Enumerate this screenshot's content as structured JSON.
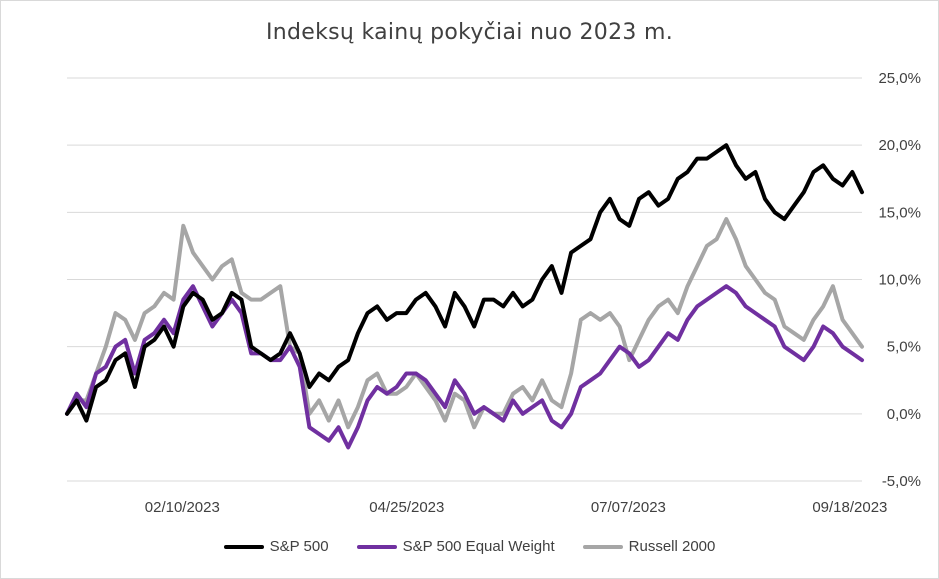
{
  "chart_data": {
    "type": "line",
    "title": "Indeksų kainų pokyčiai nuo 2023 m.",
    "xlabel": "",
    "ylabel": "",
    "ylim": [
      -0.05,
      0.25
    ],
    "y_ticks": [
      "-5,0%",
      "0,0%",
      "5,0%",
      "10,0%",
      "15,0%",
      "20,0%",
      "25,0%"
    ],
    "x_ticks": [
      "02/10/2023",
      "04/25/2023",
      "07/07/2023",
      "09/18/2023"
    ],
    "grid": true,
    "legend_position": "bottom",
    "x_start": "01/03/2023",
    "x_end": "09/22/2023",
    "series": [
      {
        "name": "S&P 500",
        "color": "#000000",
        "values": [
          0.0,
          0.01,
          -0.005,
          0.02,
          0.025,
          0.04,
          0.045,
          0.02,
          0.05,
          0.055,
          0.065,
          0.05,
          0.08,
          0.09,
          0.085,
          0.07,
          0.075,
          0.09,
          0.085,
          0.05,
          0.045,
          0.04,
          0.045,
          0.06,
          0.045,
          0.02,
          0.03,
          0.025,
          0.035,
          0.04,
          0.06,
          0.075,
          0.08,
          0.07,
          0.075,
          0.075,
          0.085,
          0.09,
          0.08,
          0.065,
          0.09,
          0.08,
          0.065,
          0.085,
          0.085,
          0.08,
          0.09,
          0.08,
          0.085,
          0.1,
          0.11,
          0.09,
          0.12,
          0.125,
          0.13,
          0.15,
          0.16,
          0.145,
          0.14,
          0.16,
          0.165,
          0.155,
          0.16,
          0.175,
          0.18,
          0.19,
          0.19,
          0.195,
          0.2,
          0.185,
          0.175,
          0.18,
          0.16,
          0.15,
          0.145,
          0.155,
          0.165,
          0.18,
          0.185,
          0.175,
          0.17,
          0.18,
          0.165
        ],
        "x_tick_index_reference": "values evenly spaced from 01/03/2023 to 09/22/2023"
      },
      {
        "name": "S&P 500 Equal Weight",
        "color": "#7030a0",
        "values": [
          0.0,
          0.015,
          0.005,
          0.03,
          0.035,
          0.05,
          0.055,
          0.03,
          0.055,
          0.06,
          0.07,
          0.06,
          0.085,
          0.095,
          0.08,
          0.065,
          0.075,
          0.085,
          0.075,
          0.045,
          0.045,
          0.04,
          0.04,
          0.05,
          0.035,
          -0.01,
          -0.015,
          -0.02,
          -0.01,
          -0.025,
          -0.01,
          0.01,
          0.02,
          0.015,
          0.02,
          0.03,
          0.03,
          0.025,
          0.015,
          0.005,
          0.025,
          0.015,
          0.0,
          0.005,
          0.0,
          -0.005,
          0.01,
          0.0,
          0.005,
          0.01,
          -0.005,
          -0.01,
          0.0,
          0.02,
          0.025,
          0.03,
          0.04,
          0.05,
          0.045,
          0.035,
          0.04,
          0.05,
          0.06,
          0.055,
          0.07,
          0.08,
          0.085,
          0.09,
          0.095,
          0.09,
          0.08,
          0.075,
          0.07,
          0.065,
          0.05,
          0.045,
          0.04,
          0.05,
          0.065,
          0.06,
          0.05,
          0.045,
          0.04
        ]
      },
      {
        "name": "Russell 2000",
        "color": "#a6a6a6",
        "values": [
          0.0,
          0.01,
          0.01,
          0.03,
          0.05,
          0.075,
          0.07,
          0.055,
          0.075,
          0.08,
          0.09,
          0.085,
          0.14,
          0.12,
          0.11,
          0.1,
          0.11,
          0.115,
          0.09,
          0.085,
          0.085,
          0.09,
          0.095,
          0.05,
          0.045,
          0.0,
          0.01,
          -0.005,
          0.01,
          -0.01,
          0.005,
          0.025,
          0.03,
          0.015,
          0.015,
          0.02,
          0.03,
          0.02,
          0.01,
          -0.005,
          0.015,
          0.01,
          -0.01,
          0.005,
          0.0,
          0.0,
          0.015,
          0.02,
          0.01,
          0.025,
          0.01,
          0.005,
          0.03,
          0.07,
          0.075,
          0.07,
          0.075,
          0.065,
          0.04,
          0.055,
          0.07,
          0.08,
          0.085,
          0.075,
          0.095,
          0.11,
          0.125,
          0.13,
          0.145,
          0.13,
          0.11,
          0.1,
          0.09,
          0.085,
          0.065,
          0.06,
          0.055,
          0.07,
          0.08,
          0.095,
          0.07,
          0.06,
          0.05
        ]
      }
    ]
  }
}
